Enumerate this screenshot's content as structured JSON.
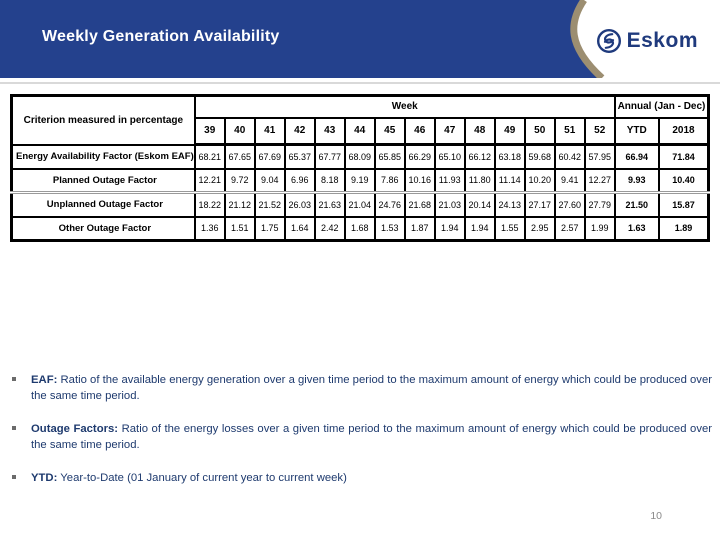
{
  "header": {
    "title": "Weekly Generation Availability",
    "logo_text": "Eskom",
    "band_color": "#24418d",
    "arc_color": "#9c8e71",
    "logo_color": "#1f3a7d"
  },
  "table": {
    "criterion_header": "Criterion measured in percentage",
    "week_header": "Week",
    "annual_header": "Annual (Jan - Dec)",
    "week_columns": [
      "39",
      "40",
      "41",
      "42",
      "43",
      "44",
      "45",
      "46",
      "47",
      "48",
      "49",
      "50",
      "51",
      "52"
    ],
    "annual_columns": [
      "YTD",
      "2018"
    ],
    "rows": [
      {
        "label": "Energy Availability Factor (Eskom EAF)",
        "values": [
          "68.21",
          "67.65",
          "67.69",
          "65.37",
          "67.77",
          "68.09",
          "65.85",
          "66.29",
          "65.10",
          "66.12",
          "63.18",
          "59.68",
          "60.42",
          "57.95",
          "66.94",
          "71.84"
        ]
      },
      {
        "label": "Planned Outage Factor",
        "values": [
          "12.21",
          "9.72",
          "9.04",
          "6.96",
          "8.18",
          "9.19",
          "7.86",
          "10.16",
          "11.93",
          "11.80",
          "11.14",
          "10.20",
          "9.41",
          "12.27",
          "9.93",
          "10.40"
        ]
      },
      {
        "label": "Unplanned Outage Factor",
        "values": [
          "18.22",
          "21.12",
          "21.52",
          "26.03",
          "21.63",
          "21.04",
          "24.76",
          "21.68",
          "21.03",
          "20.14",
          "24.13",
          "27.17",
          "27.60",
          "27.79",
          "21.50",
          "15.87"
        ]
      },
      {
        "label": "Other Outage Factor",
        "values": [
          "1.36",
          "1.51",
          "1.75",
          "1.64",
          "2.42",
          "1.68",
          "1.53",
          "1.87",
          "1.94",
          "1.94",
          "1.55",
          "2.95",
          "2.57",
          "1.99",
          "1.63",
          "1.89"
        ]
      }
    ]
  },
  "bullets": [
    {
      "lead": "EAF:",
      "text": "Ratio of the available energy generation over a given time period to the maximum amount of energy which could be produced over the same time period."
    },
    {
      "lead": "Outage Factors:",
      "text": "Ratio of the energy losses over a given time period to the maximum amount of energy which could be produced over the same time period."
    },
    {
      "lead": "YTD:",
      "text": "Year-to-Date (01 January of current year to current week)"
    }
  ],
  "page_number": "10"
}
